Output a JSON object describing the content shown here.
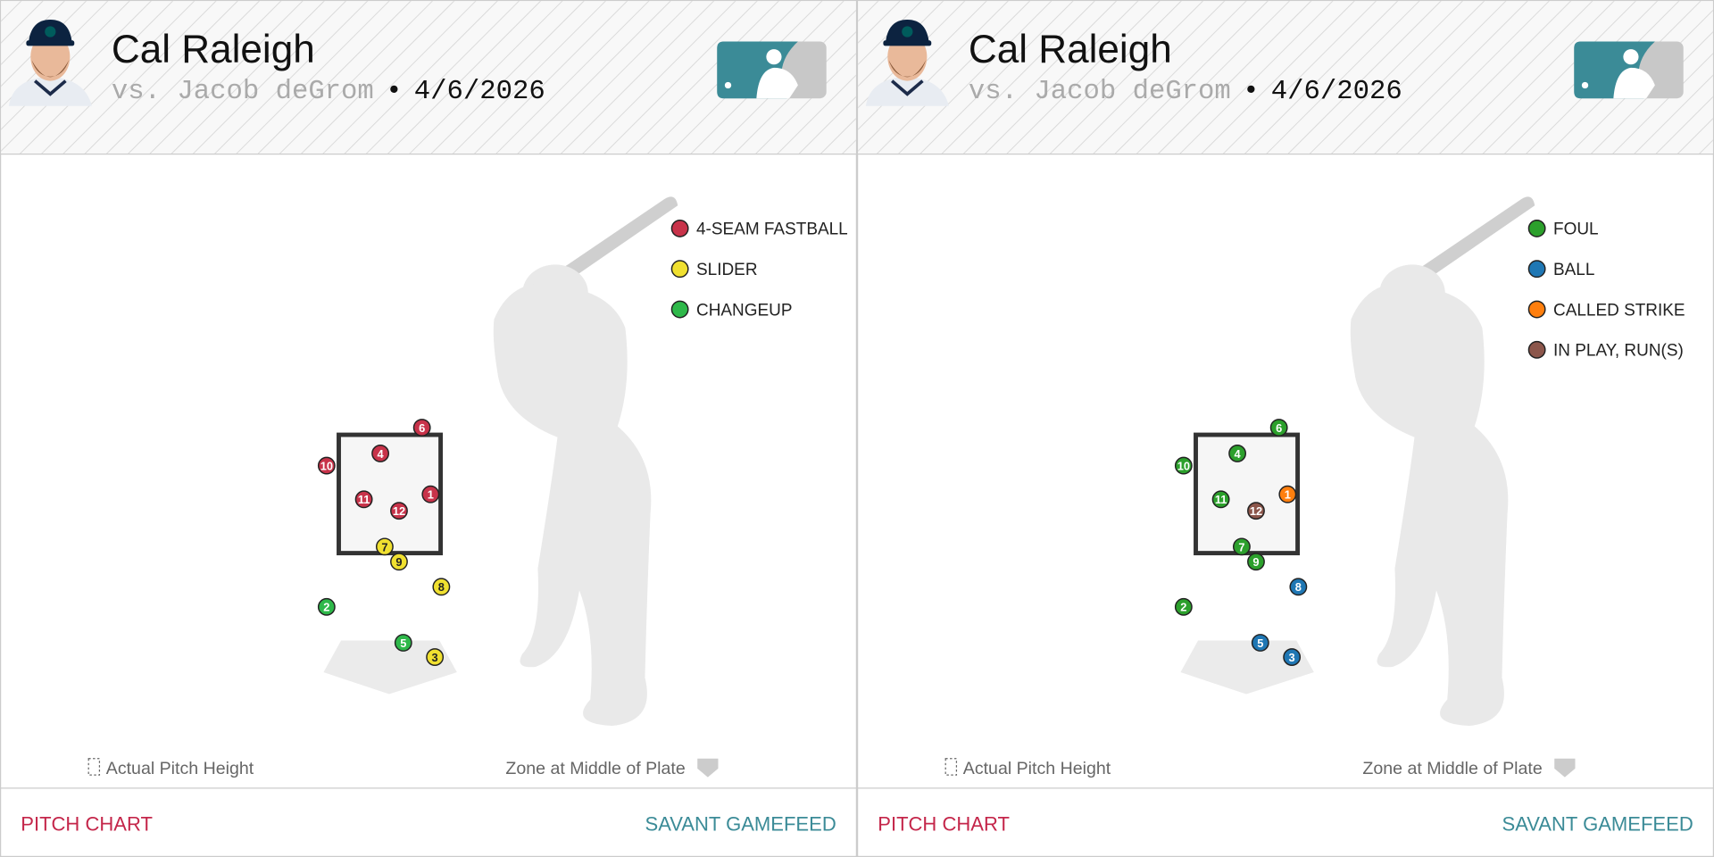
{
  "panels": [
    {
      "header": {
        "name": "Cal Raleigh",
        "opponent": "vs. Jacob deGrom",
        "separator": "•",
        "date": "4/6/2026"
      },
      "zone": {
        "left": -0.71,
        "right": 0.71,
        "bottom": 1.5,
        "top": 3.15
      },
      "legend": [
        {
          "name": "4-SEAM FASTBALL",
          "color": "#c8334a",
          "pitches": [
            {
              "number": 1,
              "x": 0.57,
              "z": 2.32
            },
            {
              "number": 4,
              "x": -0.13,
              "z": 2.89
            },
            {
              "number": 6,
              "x": 0.45,
              "z": 3.25
            },
            {
              "number": 10,
              "x": -0.88,
              "z": 2.72
            },
            {
              "number": 11,
              "x": -0.36,
              "z": 2.25
            },
            {
              "number": 12,
              "x": 0.13,
              "z": 2.09
            }
          ]
        },
        {
          "name": "SLIDER",
          "color": "#f0e030",
          "pitches": [
            {
              "number": 3,
              "x": 0.63,
              "z": 0.05
            },
            {
              "number": 7,
              "x": -0.07,
              "z": 1.59
            },
            {
              "number": 8,
              "x": 0.72,
              "z": 1.03
            },
            {
              "number": 9,
              "x": 0.13,
              "z": 1.38
            }
          ]
        },
        {
          "name": "CHANGEUP",
          "color": "#2eb84a",
          "pitches": [
            {
              "number": 2,
              "x": -0.88,
              "z": 0.75
            },
            {
              "number": 5,
              "x": 0.19,
              "z": 0.25
            }
          ]
        }
      ],
      "notes": {
        "height": "Actual Pitch Height",
        "zone": "Zone at Middle of Plate"
      },
      "footer": {
        "left": "PITCH CHART",
        "right": "SAVANT GAMEFEED"
      }
    },
    {
      "header": {
        "name": "Cal Raleigh",
        "opponent": "vs. Jacob deGrom",
        "separator": "•",
        "date": "4/6/2026"
      },
      "zone": {
        "left": -0.71,
        "right": 0.71,
        "bottom": 1.5,
        "top": 3.15
      },
      "legend": [
        {
          "name": "FOUL",
          "color": "#2ca02c",
          "pitches": [
            {
              "number": 2,
              "x": -0.88,
              "z": 0.75
            },
            {
              "number": 4,
              "x": -0.13,
              "z": 2.89
            },
            {
              "number": 6,
              "x": 0.45,
              "z": 3.25
            },
            {
              "number": 7,
              "x": -0.07,
              "z": 1.59
            },
            {
              "number": 9,
              "x": 0.13,
              "z": 1.38
            },
            {
              "number": 10,
              "x": -0.88,
              "z": 2.72
            },
            {
              "number": 11,
              "x": -0.36,
              "z": 2.25
            }
          ]
        },
        {
          "name": "BALL",
          "color": "#1f77b4",
          "pitches": [
            {
              "number": 3,
              "x": 0.63,
              "z": 0.05
            },
            {
              "number": 5,
              "x": 0.19,
              "z": 0.25
            },
            {
              "number": 8,
              "x": 0.72,
              "z": 1.03
            }
          ]
        },
        {
          "name": "CALLED STRIKE",
          "color": "#ff7f0e",
          "pitches": [
            {
              "number": 1,
              "x": 0.57,
              "z": 2.32
            }
          ]
        },
        {
          "name": "IN PLAY, RUN(S)",
          "color": "#8c564b",
          "pitches": [
            {
              "number": 12,
              "x": 0.13,
              "z": 2.09
            }
          ]
        }
      ],
      "notes": {
        "height": "Actual Pitch Height",
        "zone": "Zone at Middle of Plate"
      },
      "footer": {
        "left": "PITCH CHART",
        "right": "SAVANT GAMEFEED"
      }
    }
  ]
}
